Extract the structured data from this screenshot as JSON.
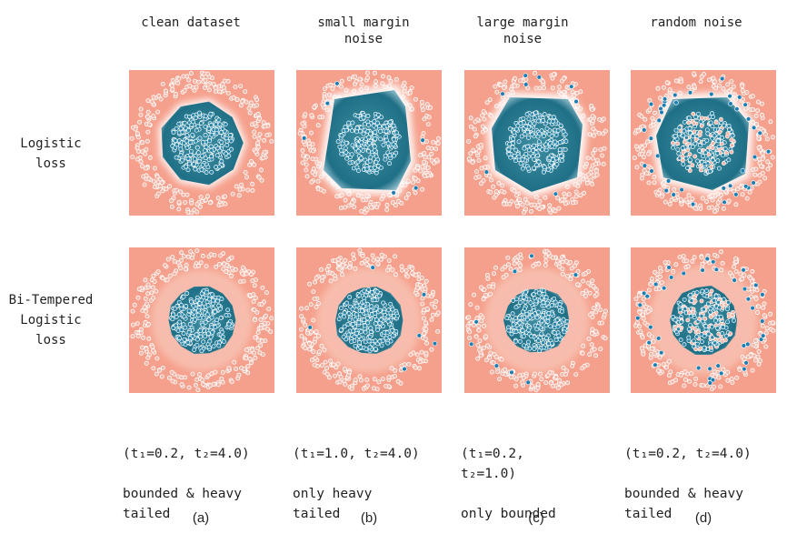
{
  "columns": [
    {
      "title": "clean dataset"
    },
    {
      "title": "small margin\nnoise"
    },
    {
      "title": "large margin\nnoise"
    },
    {
      "title": "random noise"
    }
  ],
  "rows": [
    {
      "title": "Logistic\nloss"
    },
    {
      "title": "Bi-Tempered\nLogistic\nloss"
    }
  ],
  "captions": [
    {
      "params": "(t₁=0.2, t₂=4.0)",
      "desc": "bounded & heavy\ntailed",
      "label": "(a)"
    },
    {
      "params": "(t₁=1.0, t₂=4.0)",
      "desc": "only heavy\ntailed",
      "label": "(b)"
    },
    {
      "params": "(t₁=0.2,\nt₂=1.0)",
      "desc": "only bounded",
      "label": "(c)"
    },
    {
      "params": "(t₁=0.2, t₂=4.0)",
      "desc": "bounded & heavy\ntailed",
      "label": "(d)"
    }
  ],
  "colors": {
    "background_class": "#f5a08c",
    "inner_region": "#3f8fa3",
    "inner_region_dark": "#1f6f86",
    "boundary": "#ffffff",
    "outer_points": "#f3b5a6",
    "inner_points": "#2a86a8",
    "noise_points": "#1b7fb3"
  }
}
